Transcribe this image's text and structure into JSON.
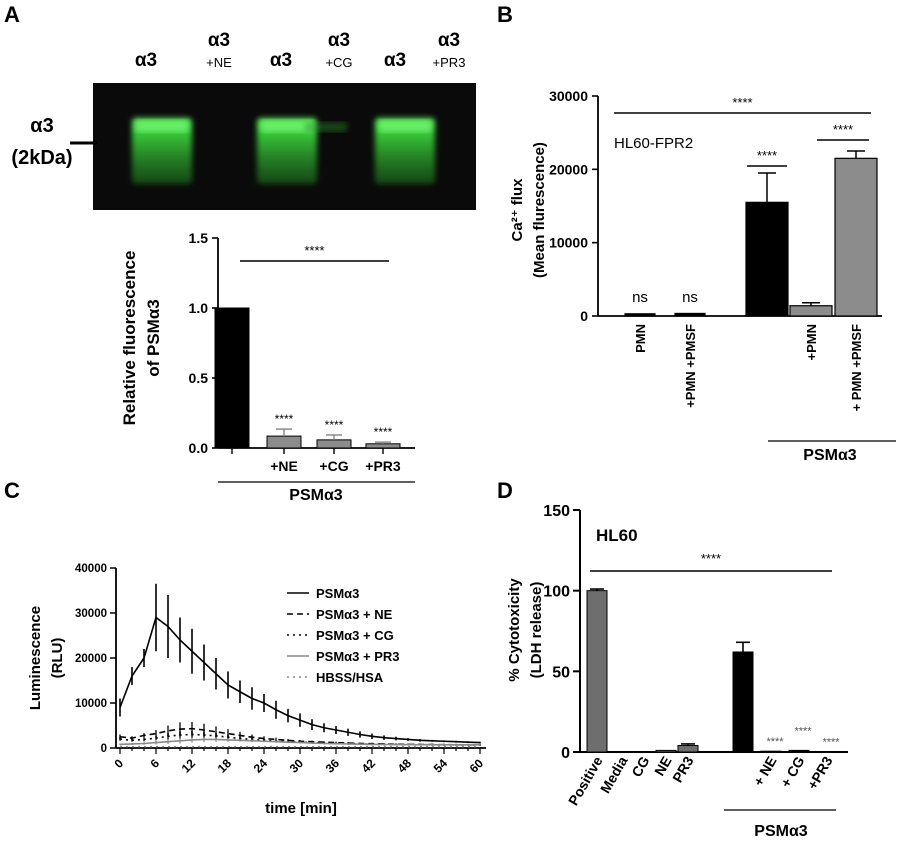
{
  "panel_letters": [
    "A",
    "B",
    "C",
    "D"
  ],
  "chart_data": [
    {
      "panel": "A-gel",
      "type": "other",
      "lanes": [
        {
          "main": "α3",
          "sub": ""
        },
        {
          "main": "α3",
          "sub": "+NE"
        },
        {
          "main": "α3",
          "sub": ""
        },
        {
          "main": "α3",
          "sub": "+CG"
        },
        {
          "main": "α3",
          "sub": ""
        },
        {
          "main": "α3",
          "sub": "+PR3"
        }
      ],
      "marker": {
        "name": "α3",
        "size": "(2kDa)"
      },
      "bands_present": [
        true,
        false,
        true,
        false,
        true,
        false
      ],
      "band_color": "#3cd83c",
      "gel_color": "#0a0a0a"
    },
    {
      "panel": "A",
      "type": "bar",
      "categories": [
        "",
        "+NE",
        "+CG",
        "+PR3"
      ],
      "values": [
        1.0,
        0.085,
        0.058,
        0.03
      ],
      "errors": [
        0,
        0.05,
        0.035,
        0.012
      ],
      "annotations": [
        "",
        "****",
        "****",
        "****"
      ],
      "bar_colors": [
        "#000000",
        "#8c8c8c",
        "#8c8c8c",
        "#8c8c8c"
      ],
      "ylabel_line1": "Relative fluorescence",
      "ylabel_line2": "of PSMα3",
      "yticks": [
        "0.0",
        "0.5",
        "1.0",
        "1.5"
      ],
      "ylim": [
        0,
        1.5
      ],
      "group_label": "PSMα3",
      "significance": "****"
    },
    {
      "panel": "B",
      "type": "bar",
      "categories": [
        "PMN",
        "+PMN +PMSF",
        "",
        "+PMN",
        "+ PMN +PMSF"
      ],
      "values": [
        300,
        350,
        15500,
        1400,
        21500
      ],
      "errors": [
        0,
        0,
        4000,
        400,
        1000
      ],
      "annotations": [
        "ns",
        "ns",
        "",
        "",
        ""
      ],
      "bar_colors": [
        "#000000",
        "#000000",
        "#000000",
        "#8c8c8c",
        "#8c8c8c"
      ],
      "ylabel_line1": "Ca²⁺ flux",
      "ylabel_line2": "(Mean flurescence)",
      "yticks": [
        "0",
        "10000",
        "20000",
        "30000"
      ],
      "ylim": [
        0,
        30000
      ],
      "inset_label": "HL60-FPR2",
      "group_label": "PSMα3",
      "significance": [
        "****",
        "****",
        "****"
      ]
    },
    {
      "panel": "C",
      "type": "line",
      "x": [
        0,
        2,
        4,
        6,
        8,
        10,
        12,
        14,
        16,
        18,
        20,
        22,
        24,
        26,
        28,
        30,
        32,
        34,
        36,
        38,
        40,
        42,
        44,
        46,
        48,
        50,
        52,
        54,
        56,
        58,
        60
      ],
      "xticks": [
        "0",
        "6",
        "12",
        "18",
        "24",
        "30",
        "36",
        "42",
        "48",
        "54",
        "60"
      ],
      "xlabel": "time [min]",
      "ylabel_line1": "Luminescence",
      "ylabel_line2": "(RLU)",
      "yticks": [
        "0",
        "10000",
        "20000",
        "30000",
        "40000"
      ],
      "ylim": [
        0,
        40000
      ],
      "series": [
        {
          "name": "PSMα3",
          "style": "solid",
          "color": "#000000",
          "values": [
            9000,
            16000,
            20000,
            29000,
            27000,
            24000,
            21500,
            19000,
            16500,
            14000,
            12500,
            11000,
            10000,
            8500,
            7200,
            6200,
            5200,
            4500,
            4000,
            3500,
            3000,
            2600,
            2300,
            2100,
            1900,
            1700,
            1600,
            1500,
            1400,
            1300,
            1200
          ],
          "errors": [
            2000,
            2000,
            2000,
            7500,
            7000,
            5000,
            5000,
            4000,
            3500,
            3000,
            2500,
            2500,
            2000,
            2000,
            1500,
            1500,
            1200,
            1000,
            900,
            800,
            700,
            600,
            500,
            400,
            300,
            300,
            200,
            200,
            200,
            200,
            200
          ]
        },
        {
          "name": "PSMα3 + NE",
          "style": "dashed",
          "color": "#000000",
          "values": [
            2500,
            2200,
            2800,
            3200,
            3800,
            4200,
            4300,
            4000,
            3600,
            3200,
            2800,
            2400,
            2100,
            1900,
            1700,
            1500,
            1400,
            1300,
            1200,
            1100,
            1000,
            950,
            900,
            850,
            800,
            780,
            760,
            740,
            720,
            700,
            700
          ],
          "errors": [
            500,
            400,
            500,
            800,
            1200,
            1500,
            1500,
            1400,
            1200,
            1000,
            800,
            600,
            500,
            400,
            300,
            300,
            200,
            200,
            200,
            200,
            200,
            200,
            200,
            200,
            200,
            200,
            200,
            200,
            200,
            200,
            200
          ]
        },
        {
          "name": "PSMα3 + CG",
          "style": "dotted",
          "color": "#000000",
          "values": [
            2000,
            1700,
            1900,
            2200,
            2600,
            2900,
            3000,
            2900,
            2700,
            2400,
            2100,
            1900,
            1700,
            1500,
            1400,
            1300,
            1200,
            1100,
            1000,
            950,
            900,
            850,
            800,
            780,
            760,
            740,
            720,
            700,
            700,
            700,
            700
          ],
          "errors": [
            400,
            300,
            400,
            500,
            700,
            800,
            800,
            700,
            600,
            500,
            400,
            300,
            300,
            200,
            200,
            200,
            200,
            200,
            200,
            200,
            200,
            200,
            200,
            200,
            200,
            200,
            200,
            200,
            200,
            200,
            200
          ]
        },
        {
          "name": "PSMα3 + PR3",
          "style": "solid-gray",
          "color": "#8a8a8a",
          "values": [
            800,
            900,
            1000,
            1200,
            1400,
            1600,
            1800,
            1900,
            1900,
            1800,
            1700,
            1600,
            1500,
            1400,
            1300,
            1200,
            1100,
            1000,
            950,
            900,
            850,
            800,
            780,
            760,
            740,
            720,
            700,
            700,
            700,
            700,
            700
          ],
          "errors": [
            200,
            200,
            300,
            400,
            500,
            600,
            600,
            600,
            500,
            400,
            300,
            300,
            200,
            200,
            200,
            200,
            200,
            200,
            200,
            200,
            200,
            200,
            200,
            200,
            200,
            200,
            200,
            200,
            200,
            200,
            200
          ]
        },
        {
          "name": "HBSS/HSA",
          "style": "dotted-gray",
          "color": "#888888",
          "values": [
            300,
            300,
            300,
            300,
            300,
            300,
            300,
            300,
            300,
            300,
            300,
            300,
            300,
            300,
            300,
            300,
            300,
            300,
            300,
            300,
            300,
            300,
            300,
            300,
            300,
            300,
            300,
            300,
            300,
            300,
            300
          ],
          "errors": []
        }
      ]
    },
    {
      "panel": "D",
      "type": "bar",
      "categories": [
        "Positive",
        "Media",
        "CG",
        "NE",
        "PR3",
        "",
        "+ NE",
        "+ CG",
        "+PR3"
      ],
      "values": [
        100,
        0,
        0,
        1,
        4,
        62,
        0.5,
        1,
        0.2
      ],
      "errors": [
        1,
        0,
        0,
        0,
        1,
        6,
        0,
        0,
        0
      ],
      "annotations": [
        "",
        "",
        "",
        "",
        "",
        "",
        "****",
        "****",
        "****"
      ],
      "bar_colors": [
        "#6e6e6e",
        "#6e6e6e",
        "#6e6e6e",
        "#6e6e6e",
        "#6e6e6e",
        "#000000",
        "#000000",
        "#000000",
        "#000000"
      ],
      "ylabel_line1": "% Cytotoxicity",
      "ylabel_line2": "(LDH release)",
      "yticks": [
        "0",
        "50",
        "100",
        "150"
      ],
      "ylim": [
        0,
        150
      ],
      "inset_label": "HL60",
      "group_label": "PSMα3",
      "significance": "****"
    }
  ]
}
